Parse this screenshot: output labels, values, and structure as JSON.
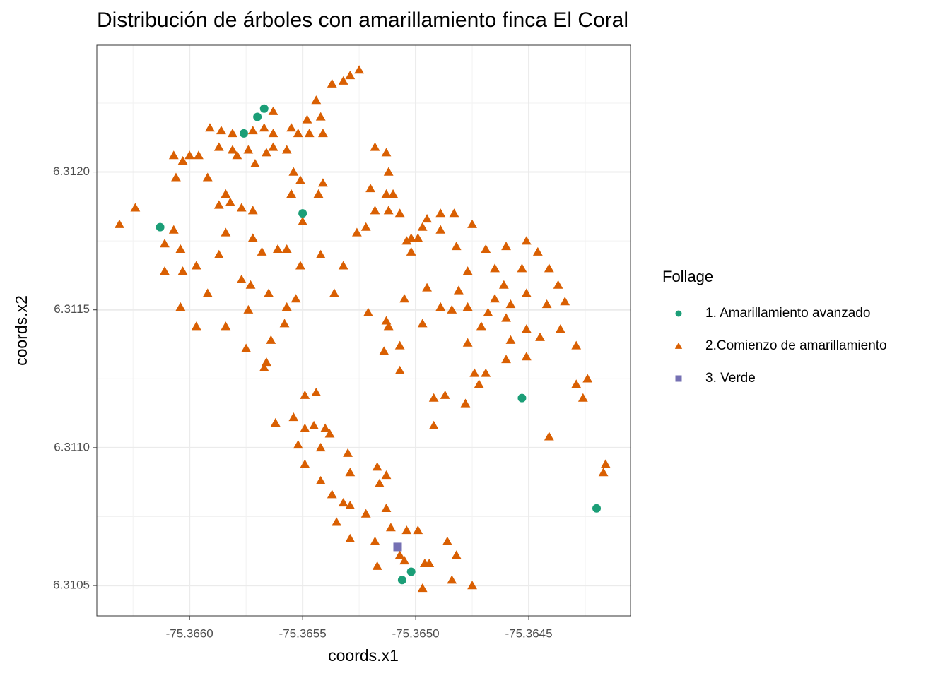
{
  "chart_data": {
    "type": "scatter",
    "title": "Distribución de árboles con amarillamiento finca El Coral",
    "x_label": "coords.x1",
    "y_label": "coords.x2",
    "legend_title": "Follage",
    "legend_position": "right",
    "grid": true,
    "xlim": [
      -75.36641,
      -75.36405
    ],
    "ylim": [
      6.31039,
      6.31246
    ],
    "xticks": [
      {
        "value": -75.366,
        "label": "-75.3660"
      },
      {
        "value": -75.3655,
        "label": "-75.3655"
      },
      {
        "value": -75.365,
        "label": "-75.3650"
      },
      {
        "value": -75.3645,
        "label": "-75.3645"
      }
    ],
    "yticks": [
      {
        "value": 6.3105,
        "label": "6.3105"
      },
      {
        "value": 6.311,
        "label": "6.3110"
      },
      {
        "value": 6.3115,
        "label": "6.3115"
      },
      {
        "value": 6.312,
        "label": "6.3120"
      }
    ],
    "series": [
      {
        "name": "1. Amarillamiento avanzado",
        "color": "#1b9e77",
        "shape": "circle",
        "x": [
          -75.36567,
          -75.3657,
          -75.36576,
          -75.3655,
          -75.36613,
          -75.36453,
          -75.3642,
          -75.36506,
          -75.36502
        ],
        "values": [
          6.31223,
          6.3122,
          6.31214,
          6.31185,
          6.3118,
          6.31118,
          6.31078,
          6.31052,
          6.31055
        ]
      },
      {
        "name": "2.Comienzo de amarillamiento",
        "color": "#d95f02",
        "shape": "triangle",
        "x": [
          -75.36525,
          -75.36529,
          -75.36532,
          -75.36537,
          -75.36544,
          -75.36542,
          -75.36548,
          -75.36563,
          -75.36567,
          -75.36591,
          -75.36586,
          -75.36581,
          -75.36572,
          -75.36563,
          -75.36555,
          -75.36552,
          -75.36547,
          -75.36541,
          -75.36557,
          -75.36563,
          -75.36566,
          -75.36574,
          -75.36581,
          -75.36579,
          -75.36587,
          -75.36596,
          -75.366,
          -75.36603,
          -75.36607,
          -75.36606,
          -75.36592,
          -75.36571,
          -75.36554,
          -75.36551,
          -75.36541,
          -75.36555,
          -75.36543,
          -75.36518,
          -75.36513,
          -75.36512,
          -75.3652,
          -75.36513,
          -75.3651,
          -75.36507,
          -75.36512,
          -75.36518,
          -75.36522,
          -75.36526,
          -75.36584,
          -75.36582,
          -75.36577,
          -75.36572,
          -75.36587,
          -75.36624,
          -75.36631,
          -75.36607,
          -75.36611,
          -75.36604,
          -75.36584,
          -75.36572,
          -75.36587,
          -75.36568,
          -75.36561,
          -75.36557,
          -75.36551,
          -75.36542,
          -75.36532,
          -75.36504,
          -75.36502,
          -75.36502,
          -75.36495,
          -75.36497,
          -75.36499,
          -75.36489,
          -75.36483,
          -75.36475,
          -75.36482,
          -75.36469,
          -75.3646,
          -75.36451,
          -75.36446,
          -75.36441,
          -75.36611,
          -75.36603,
          -75.36597,
          -75.36577,
          -75.36573,
          -75.36565,
          -75.36592,
          -75.36604,
          -75.36597,
          -75.36584,
          -75.36574,
          -75.36575,
          -75.36567,
          -75.36566,
          -75.36564,
          -75.36558,
          -75.36557,
          -75.36553,
          -75.36536,
          -75.36521,
          -75.36513,
          -75.36512,
          -75.36514,
          -75.36507,
          -75.36505,
          -75.36507,
          -75.36497,
          -75.36495,
          -75.36489,
          -75.36484,
          -75.36477,
          -75.36481,
          -75.36468,
          -75.36465,
          -75.36461,
          -75.36458,
          -75.36451,
          -75.36442,
          -75.36437,
          -75.36434,
          -75.36471,
          -75.3646,
          -75.36458,
          -75.36451,
          -75.36445,
          -75.36436,
          -75.36429,
          -75.36477,
          -75.36474,
          -75.36469,
          -75.36472,
          -75.3646,
          -75.36451,
          -75.36492,
          -75.36487,
          -75.36478,
          -75.36492,
          -75.36441,
          -75.36429,
          -75.36426,
          -75.36424,
          -75.36417,
          -75.36416,
          -75.36549,
          -75.36544,
          -75.36562,
          -75.36554,
          -75.36549,
          -75.36545,
          -75.3654,
          -75.36538,
          -75.36542,
          -75.36552,
          -75.36549,
          -75.3653,
          -75.36529,
          -75.36542,
          -75.36537,
          -75.36532,
          -75.36529,
          -75.36517,
          -75.36513,
          -75.36516,
          -75.36522,
          -75.36513,
          -75.36504,
          -75.36511,
          -75.36499,
          -75.36535,
          -75.36529,
          -75.36518,
          -75.36517,
          -75.36505,
          -75.36507,
          -75.36496,
          -75.36497,
          -75.36484,
          -75.36486,
          -75.36482,
          -75.36475,
          -75.36494,
          -75.3655,
          -75.36489,
          -75.36453,
          -75.36465,
          -75.36477
        ],
        "values": [
          6.31237,
          6.31235,
          6.31233,
          6.31232,
          6.31226,
          6.3122,
          6.31219,
          6.31222,
          6.31216,
          6.31216,
          6.31215,
          6.31214,
          6.31215,
          6.31214,
          6.31216,
          6.31214,
          6.31214,
          6.31214,
          6.31208,
          6.31209,
          6.31207,
          6.31208,
          6.31208,
          6.31206,
          6.31209,
          6.31206,
          6.31206,
          6.31204,
          6.31206,
          6.31198,
          6.31198,
          6.31203,
          6.312,
          6.31197,
          6.31196,
          6.31192,
          6.31192,
          6.31209,
          6.31207,
          6.312,
          6.31194,
          6.31192,
          6.31192,
          6.31185,
          6.31186,
          6.31186,
          6.3118,
          6.31178,
          6.31192,
          6.31189,
          6.31187,
          6.31186,
          6.31188,
          6.31187,
          6.31181,
          6.31179,
          6.31174,
          6.31172,
          6.31178,
          6.31176,
          6.3117,
          6.31171,
          6.31172,
          6.31172,
          6.31166,
          6.3117,
          6.31166,
          6.31175,
          6.31176,
          6.31171,
          6.31183,
          6.3118,
          6.31176,
          6.31185,
          6.31185,
          6.31181,
          6.31173,
          6.31172,
          6.31173,
          6.31175,
          6.31171,
          6.31165,
          6.31164,
          6.31164,
          6.31166,
          6.31161,
          6.31159,
          6.31156,
          6.31156,
          6.31151,
          6.31144,
          6.31144,
          6.3115,
          6.31136,
          6.31129,
          6.31131,
          6.31139,
          6.31145,
          6.31151,
          6.31154,
          6.31156,
          6.31149,
          6.31146,
          6.31144,
          6.31135,
          6.31137,
          6.31154,
          6.31128,
          6.31145,
          6.31158,
          6.31151,
          6.3115,
          6.31151,
          6.31157,
          6.31149,
          6.31154,
          6.31159,
          6.31152,
          6.31156,
          6.31152,
          6.31159,
          6.31153,
          6.31144,
          6.31147,
          6.31139,
          6.31143,
          6.3114,
          6.31143,
          6.31137,
          6.31138,
          6.31127,
          6.31127,
          6.31123,
          6.31132,
          6.31133,
          6.31118,
          6.31119,
          6.31116,
          6.31108,
          6.31104,
          6.31123,
          6.31118,
          6.31125,
          6.31091,
          6.31094,
          6.31119,
          6.3112,
          6.31109,
          6.31111,
          6.31107,
          6.31108,
          6.31107,
          6.31105,
          6.311,
          6.31101,
          6.31094,
          6.31098,
          6.31091,
          6.31088,
          6.31083,
          6.3108,
          6.31079,
          6.31093,
          6.3109,
          6.31087,
          6.31076,
          6.31078,
          6.3107,
          6.31071,
          6.3107,
          6.31073,
          6.31067,
          6.31066,
          6.31057,
          6.31059,
          6.31061,
          6.31058,
          6.31049,
          6.31052,
          6.31066,
          6.31061,
          6.3105,
          6.31058,
          6.31182,
          6.31179,
          6.31165,
          6.31165,
          6.31164
        ]
      },
      {
        "name": "3. Verde",
        "color": "#7570b3",
        "shape": "square",
        "x": [
          -75.36508
        ],
        "values": [
          6.31064
        ]
      }
    ]
  }
}
